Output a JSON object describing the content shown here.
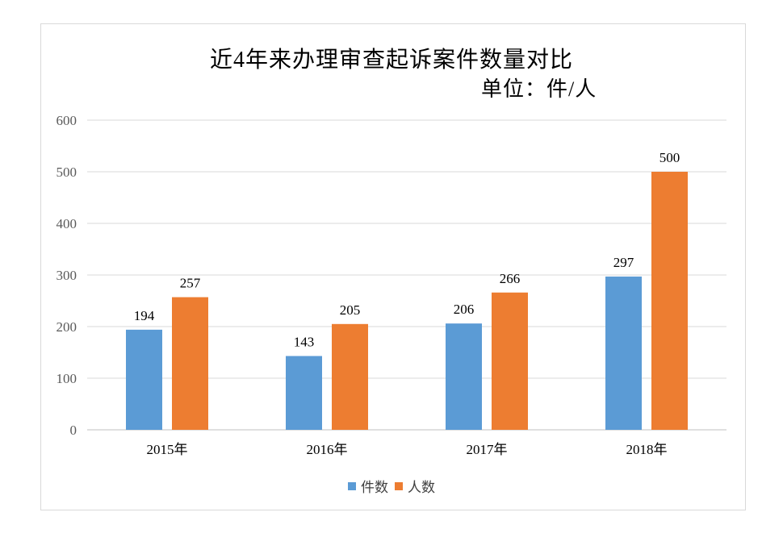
{
  "chart_data": {
    "type": "bar",
    "title": "近4年来办理审查起诉案件数量对比",
    "subtitle": "单位：件/人",
    "categories": [
      "2015年",
      "2016年",
      "2017年",
      "2018年"
    ],
    "series": [
      {
        "name": "件数",
        "color": "#5b9bd5",
        "values": [
          194,
          143,
          206,
          297
        ]
      },
      {
        "name": "人数",
        "color": "#ed7d31",
        "values": [
          257,
          205,
          266,
          500
        ]
      }
    ],
    "yticks": [
      "0",
      "100",
      "200",
      "300",
      "400",
      "500",
      "600"
    ],
    "ylim": [
      0,
      600
    ],
    "grid": true,
    "legend_position": "bottom"
  }
}
